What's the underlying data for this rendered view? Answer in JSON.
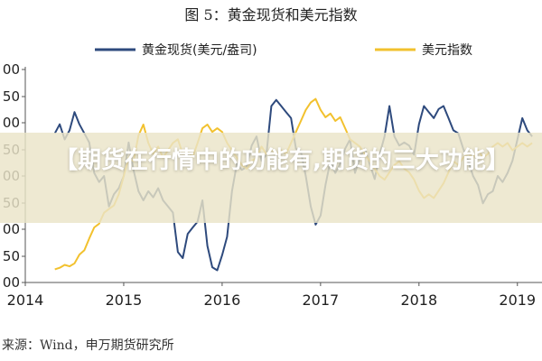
{
  "banner": {
    "text": "【期货在行情中的功能有,期货的三大功能】"
  },
  "source": {
    "text": "来源：Wind，申万期货研究所"
  },
  "chart_data": {
    "type": "line",
    "title": "图 5：黄金现货和美元指数",
    "xlabel": "",
    "ylabel": "",
    "legend_position": "top",
    "grid": false,
    "colors": {
      "gold": "#2e4a7d",
      "usd": "#f2c12e"
    },
    "x_ticks": [
      "2014",
      "2015",
      "2016",
      "2017",
      "2018",
      "2019"
    ],
    "y_ticks_left_visible": [
      "00",
      "50",
      "00",
      "50",
      "00",
      "50",
      "00",
      "50",
      "00"
    ],
    "series": [
      {
        "name": "黄金现货(美元/盎司)",
        "axis": "left",
        "points": [
          [
            2014.3,
            1295
          ],
          [
            2014.35,
            1310
          ],
          [
            2014.4,
            1285
          ],
          [
            2014.45,
            1300
          ],
          [
            2014.5,
            1330
          ],
          [
            2014.55,
            1310
          ],
          [
            2014.6,
            1295
          ],
          [
            2014.65,
            1280
          ],
          [
            2014.7,
            1230
          ],
          [
            2014.75,
            1215
          ],
          [
            2014.8,
            1225
          ],
          [
            2014.85,
            1175
          ],
          [
            2014.9,
            1195
          ],
          [
            2014.95,
            1205
          ],
          [
            2015.0,
            1225
          ],
          [
            2015.05,
            1280
          ],
          [
            2015.1,
            1235
          ],
          [
            2015.15,
            1200
          ],
          [
            2015.2,
            1185
          ],
          [
            2015.25,
            1200
          ],
          [
            2015.3,
            1190
          ],
          [
            2015.35,
            1205
          ],
          [
            2015.4,
            1185
          ],
          [
            2015.45,
            1175
          ],
          [
            2015.5,
            1165
          ],
          [
            2015.55,
            1100
          ],
          [
            2015.6,
            1090
          ],
          [
            2015.65,
            1130
          ],
          [
            2015.7,
            1140
          ],
          [
            2015.75,
            1150
          ],
          [
            2015.8,
            1185
          ],
          [
            2015.85,
            1110
          ],
          [
            2015.9,
            1075
          ],
          [
            2015.95,
            1070
          ],
          [
            2016.0,
            1095
          ],
          [
            2016.05,
            1125
          ],
          [
            2016.1,
            1200
          ],
          [
            2016.15,
            1245
          ],
          [
            2016.2,
            1235
          ],
          [
            2016.25,
            1240
          ],
          [
            2016.3,
            1275
          ],
          [
            2016.35,
            1290
          ],
          [
            2016.4,
            1250
          ],
          [
            2016.45,
            1260
          ],
          [
            2016.5,
            1340
          ],
          [
            2016.55,
            1350
          ],
          [
            2016.6,
            1340
          ],
          [
            2016.65,
            1330
          ],
          [
            2016.7,
            1320
          ],
          [
            2016.75,
            1270
          ],
          [
            2016.8,
            1265
          ],
          [
            2016.85,
            1225
          ],
          [
            2016.9,
            1175
          ],
          [
            2016.95,
            1145
          ],
          [
            2017.0,
            1160
          ],
          [
            2017.05,
            1210
          ],
          [
            2017.1,
            1250
          ],
          [
            2017.15,
            1230
          ],
          [
            2017.2,
            1245
          ],
          [
            2017.25,
            1270
          ],
          [
            2017.3,
            1285
          ],
          [
            2017.35,
            1230
          ],
          [
            2017.4,
            1255
          ],
          [
            2017.45,
            1270
          ],
          [
            2017.5,
            1245
          ],
          [
            2017.55,
            1220
          ],
          [
            2017.6,
            1260
          ],
          [
            2017.65,
            1290
          ],
          [
            2017.7,
            1340
          ],
          [
            2017.75,
            1290
          ],
          [
            2017.8,
            1275
          ],
          [
            2017.85,
            1280
          ],
          [
            2017.9,
            1275
          ],
          [
            2017.95,
            1260
          ],
          [
            2018.0,
            1310
          ],
          [
            2018.05,
            1340
          ],
          [
            2018.1,
            1330
          ],
          [
            2018.15,
            1320
          ],
          [
            2018.2,
            1335
          ],
          [
            2018.25,
            1340
          ],
          [
            2018.3,
            1320
          ],
          [
            2018.35,
            1300
          ],
          [
            2018.4,
            1295
          ],
          [
            2018.45,
            1270
          ],
          [
            2018.5,
            1250
          ],
          [
            2018.55,
            1225
          ],
          [
            2018.6,
            1210
          ],
          [
            2018.65,
            1180
          ],
          [
            2018.7,
            1195
          ],
          [
            2018.75,
            1200
          ],
          [
            2018.8,
            1225
          ],
          [
            2018.85,
            1215
          ],
          [
            2018.9,
            1230
          ],
          [
            2018.95,
            1250
          ],
          [
            2019.0,
            1285
          ],
          [
            2019.05,
            1320
          ],
          [
            2019.1,
            1300
          ],
          [
            2019.15,
            1290
          ]
        ]
      },
      {
        "name": "美元指数",
        "axis": "right",
        "points": [
          [
            2014.3,
            79.8
          ],
          [
            2014.35,
            80.0
          ],
          [
            2014.4,
            80.4
          ],
          [
            2014.45,
            80.2
          ],
          [
            2014.5,
            80.6
          ],
          [
            2014.55,
            81.8
          ],
          [
            2014.6,
            82.4
          ],
          [
            2014.65,
            84.0
          ],
          [
            2014.7,
            85.5
          ],
          [
            2014.75,
            86.0
          ],
          [
            2014.8,
            87.5
          ],
          [
            2014.85,
            88.0
          ],
          [
            2014.9,
            88.5
          ],
          [
            2014.95,
            90.0
          ],
          [
            2015.0,
            92.5
          ],
          [
            2015.05,
            95.0
          ],
          [
            2015.1,
            94.5
          ],
          [
            2015.15,
            98.0
          ],
          [
            2015.2,
            99.5
          ],
          [
            2015.25,
            97.0
          ],
          [
            2015.3,
            95.5
          ],
          [
            2015.35,
            96.5
          ],
          [
            2015.4,
            95.0
          ],
          [
            2015.45,
            96.0
          ],
          [
            2015.5,
            97.0
          ],
          [
            2015.55,
            97.5
          ],
          [
            2015.6,
            95.5
          ],
          [
            2015.65,
            96.0
          ],
          [
            2015.7,
            95.0
          ],
          [
            2015.75,
            97.0
          ],
          [
            2015.8,
            99.0
          ],
          [
            2015.85,
            99.5
          ],
          [
            2015.9,
            98.5
          ],
          [
            2015.95,
            99.0
          ],
          [
            2016.0,
            98.5
          ],
          [
            2016.05,
            97.0
          ],
          [
            2016.1,
            96.0
          ],
          [
            2016.15,
            95.0
          ],
          [
            2016.2,
            94.0
          ],
          [
            2016.25,
            93.5
          ],
          [
            2016.3,
            94.5
          ],
          [
            2016.35,
            95.0
          ],
          [
            2016.4,
            96.5
          ],
          [
            2016.45,
            95.5
          ],
          [
            2016.5,
            96.0
          ],
          [
            2016.55,
            95.5
          ],
          [
            2016.6,
            96.0
          ],
          [
            2016.65,
            95.5
          ],
          [
            2016.7,
            97.0
          ],
          [
            2016.75,
            98.5
          ],
          [
            2016.8,
            100.0
          ],
          [
            2016.85,
            101.5
          ],
          [
            2016.9,
            102.5
          ],
          [
            2016.95,
            103.0
          ],
          [
            2017.0,
            101.5
          ],
          [
            2017.05,
            100.5
          ],
          [
            2017.1,
            101.0
          ],
          [
            2017.15,
            100.0
          ],
          [
            2017.2,
            100.5
          ],
          [
            2017.25,
            99.0
          ],
          [
            2017.3,
            97.5
          ],
          [
            2017.35,
            97.0
          ],
          [
            2017.4,
            96.5
          ],
          [
            2017.45,
            95.5
          ],
          [
            2017.5,
            94.5
          ],
          [
            2017.55,
            93.5
          ],
          [
            2017.6,
            92.5
          ],
          [
            2017.65,
            92.0
          ],
          [
            2017.7,
            93.0
          ],
          [
            2017.75,
            94.0
          ],
          [
            2017.8,
            94.5
          ],
          [
            2017.85,
            93.5
          ],
          [
            2017.9,
            93.0
          ],
          [
            2017.95,
            92.0
          ],
          [
            2018.0,
            90.5
          ],
          [
            2018.05,
            89.5
          ],
          [
            2018.1,
            90.0
          ],
          [
            2018.15,
            89.5
          ],
          [
            2018.2,
            90.5
          ],
          [
            2018.25,
            91.5
          ],
          [
            2018.3,
            93.0
          ],
          [
            2018.35,
            94.5
          ],
          [
            2018.4,
            94.0
          ],
          [
            2018.45,
            95.0
          ],
          [
            2018.5,
            95.5
          ],
          [
            2018.55,
            95.0
          ],
          [
            2018.6,
            96.0
          ],
          [
            2018.65,
            95.0
          ],
          [
            2018.7,
            95.5
          ],
          [
            2018.75,
            96.5
          ],
          [
            2018.8,
            97.0
          ],
          [
            2018.85,
            96.5
          ],
          [
            2018.9,
            97.0
          ],
          [
            2018.95,
            96.0
          ],
          [
            2019.0,
            96.5
          ],
          [
            2019.05,
            97.0
          ],
          [
            2019.1,
            96.5
          ],
          [
            2019.15,
            97.0
          ]
        ]
      }
    ]
  }
}
